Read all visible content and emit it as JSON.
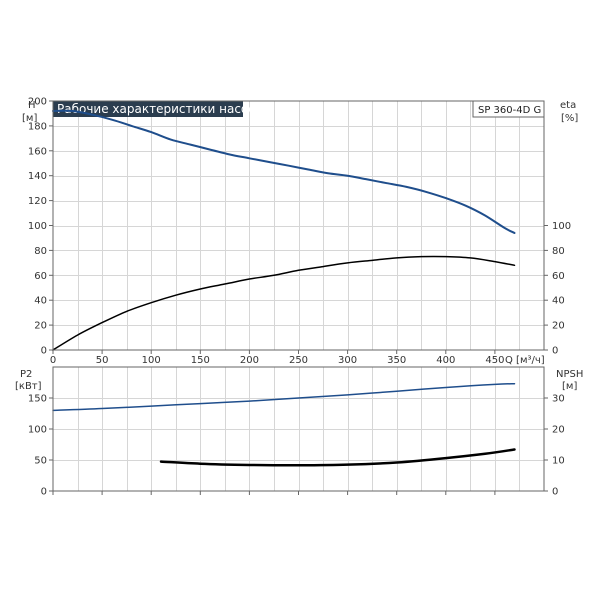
{
  "title": "Рабочие характеристики насоса",
  "model": "SP 360-4D G",
  "colors": {
    "title_bg": "#2b3d4f",
    "blue": "#1f4e8c",
    "black": "#000000",
    "grid": "#d6d6d6"
  },
  "chart_data": [
    {
      "type": "line",
      "name": "top-panel",
      "x_label": "Q [м³/ч]",
      "xlim": [
        0,
        500
      ],
      "x_ticks": [
        0,
        50,
        100,
        150,
        200,
        250,
        300,
        350,
        400,
        450
      ],
      "left_axis": {
        "label_line1": "H",
        "label_line2": "[м]",
        "ylim": [
          0,
          200
        ],
        "ticks": [
          0,
          20,
          40,
          60,
          80,
          100,
          120,
          140,
          160,
          180,
          200
        ]
      },
      "right_axis": {
        "label_line1": "eta",
        "label_line2": "[%]",
        "ylim": [
          0,
          200
        ],
        "ticks": [
          0,
          20,
          40,
          60,
          80,
          100
        ]
      },
      "grid": true,
      "series": [
        {
          "axis": "left",
          "color": "#1f4e8c",
          "width": 2,
          "points": [
            [
              0,
              192
            ],
            [
              20,
              192
            ],
            [
              40,
              189
            ],
            [
              60,
              185
            ],
            [
              80,
              180
            ],
            [
              100,
              175
            ],
            [
              120,
              169
            ],
            [
              140,
              165
            ],
            [
              160,
              161
            ],
            [
              180,
              157
            ],
            [
              200,
              154
            ],
            [
              220,
              151
            ],
            [
              240,
              148
            ],
            [
              260,
              145
            ],
            [
              280,
              142
            ],
            [
              300,
              140
            ],
            [
              320,
              137
            ],
            [
              340,
              134
            ],
            [
              360,
              131
            ],
            [
              380,
              127
            ],
            [
              400,
              122
            ],
            [
              420,
              116
            ],
            [
              440,
              108
            ],
            [
              460,
              98
            ],
            [
              470,
              94
            ]
          ]
        },
        {
          "axis": "right",
          "color": "#000000",
          "width": 1.5,
          "points": [
            [
              0,
              0
            ],
            [
              25,
              12
            ],
            [
              50,
              22
            ],
            [
              75,
              31
            ],
            [
              100,
              38
            ],
            [
              125,
              44
            ],
            [
              150,
              49
            ],
            [
              175,
              53
            ],
            [
              200,
              57
            ],
            [
              225,
              60
            ],
            [
              250,
              64
            ],
            [
              275,
              67
            ],
            [
              300,
              70
            ],
            [
              325,
              72
            ],
            [
              350,
              74
            ],
            [
              375,
              75
            ],
            [
              400,
              75
            ],
            [
              425,
              74
            ],
            [
              450,
              71
            ],
            [
              470,
              68
            ]
          ]
        }
      ]
    },
    {
      "type": "line",
      "name": "bottom-panel",
      "xlim": [
        0,
        500
      ],
      "x_ticks": [
        0,
        50,
        100,
        150,
        200,
        250,
        300,
        350,
        400,
        450
      ],
      "left_axis": {
        "label_line1": "P2",
        "label_line2": "[кВт]",
        "ylim": [
          0,
          200
        ],
        "ticks": [
          0,
          50,
          100,
          150
        ]
      },
      "right_axis": {
        "label_line1": "NPSH",
        "label_line2": "[м]",
        "ylim": [
          0,
          40
        ],
        "ticks": [
          0,
          10,
          20,
          30
        ]
      },
      "grid": true,
      "series": [
        {
          "axis": "left",
          "color": "#1f4e8c",
          "width": 1.5,
          "points": [
            [
              0,
              130
            ],
            [
              50,
              133
            ],
            [
              100,
              137
            ],
            [
              150,
              141
            ],
            [
              200,
              145
            ],
            [
              250,
              150
            ],
            [
              300,
              155
            ],
            [
              350,
              161
            ],
            [
              400,
              167
            ],
            [
              450,
              172
            ],
            [
              470,
              173
            ]
          ]
        },
        {
          "axis": "right",
          "color": "#000000",
          "width": 2.5,
          "points": [
            [
              110,
              9.5
            ],
            [
              150,
              8.8
            ],
            [
              200,
              8.4
            ],
            [
              250,
              8.3
            ],
            [
              300,
              8.5
            ],
            [
              350,
              9.2
            ],
            [
              400,
              10.6
            ],
            [
              440,
              12.0
            ],
            [
              470,
              13.4
            ]
          ]
        }
      ]
    }
  ]
}
